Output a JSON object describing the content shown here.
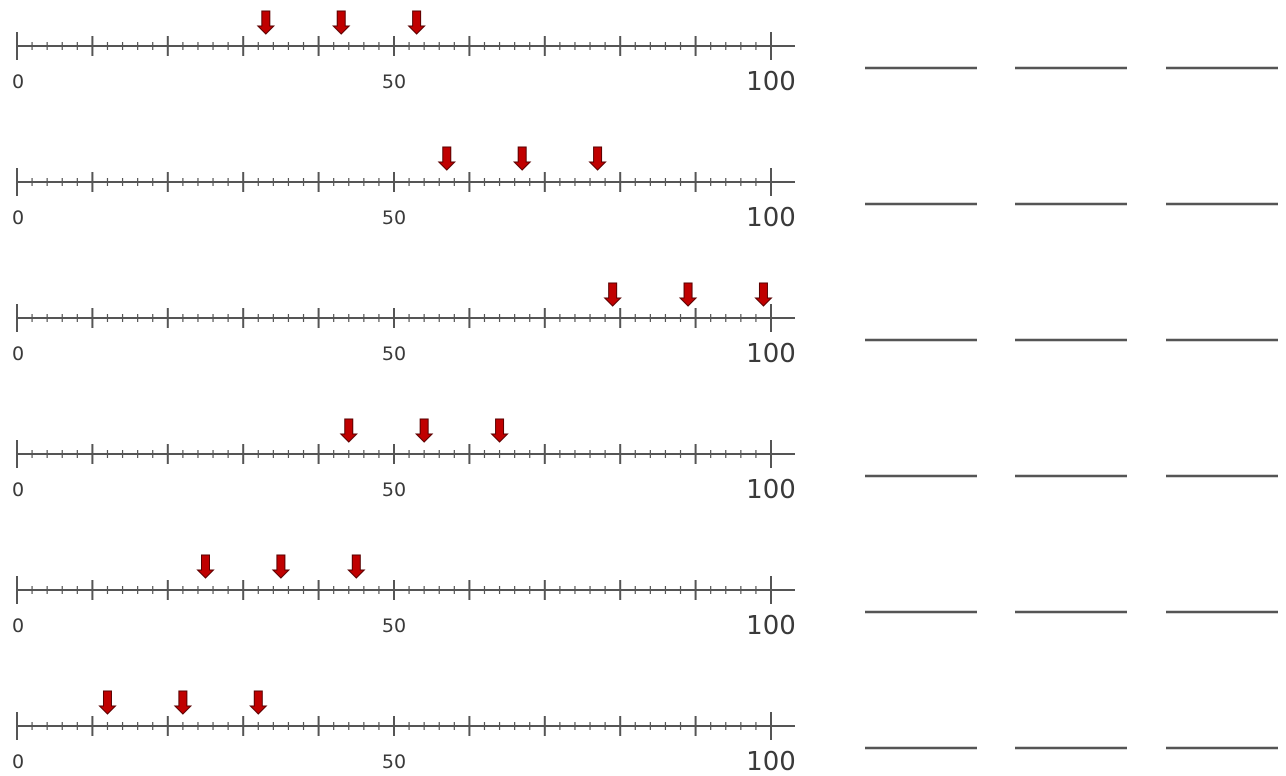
{
  "worksheet": {
    "scale": {
      "min": 0,
      "max": 100,
      "major_step": 10,
      "minor_step": 2
    },
    "tick_labels": [
      {
        "value": 0,
        "text": "0"
      },
      {
        "value": 50,
        "text": "50"
      },
      {
        "value": 100,
        "text": "100"
      }
    ],
    "arrow_color": "#c00000",
    "line_color": "#555555",
    "rows": [
      {
        "arrows": [
          33,
          43,
          53
        ],
        "answer_blanks": [
          "",
          "",
          ""
        ]
      },
      {
        "arrows": [
          57,
          67,
          77
        ],
        "answer_blanks": [
          "",
          "",
          ""
        ]
      },
      {
        "arrows": [
          79,
          89,
          99
        ],
        "answer_blanks": [
          "",
          "",
          ""
        ]
      },
      {
        "arrows": [
          44,
          54,
          64
        ],
        "answer_blanks": [
          "",
          "",
          ""
        ]
      },
      {
        "arrows": [
          25,
          35,
          45
        ],
        "answer_blanks": [
          "",
          "",
          ""
        ]
      },
      {
        "arrows": [
          12,
          22,
          32
        ],
        "answer_blanks": [
          "",
          "",
          ""
        ]
      }
    ]
  }
}
